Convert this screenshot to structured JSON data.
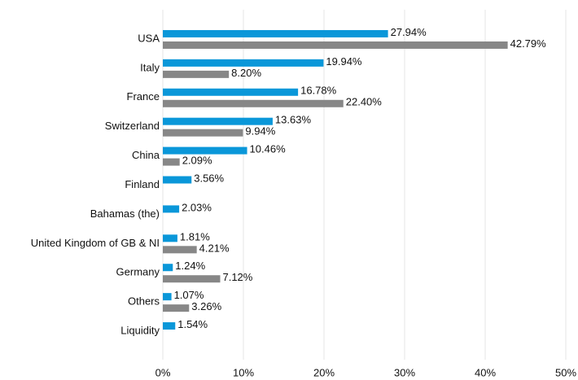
{
  "chart_data": {
    "type": "bar",
    "orientation": "horizontal",
    "categories": [
      "USA",
      "Italy",
      "France",
      "Switzerland",
      "China",
      "Finland",
      "Bahamas (the)",
      "United Kingdom of GB & NI",
      "Germany",
      "Others",
      "Liquidity"
    ],
    "series": [
      {
        "color": "#0a97d9",
        "values": [
          27.94,
          19.94,
          16.78,
          13.63,
          10.46,
          3.56,
          2.03,
          1.81,
          1.24,
          1.07,
          1.54
        ],
        "value_labels": [
          "27.94%",
          "19.94%",
          "16.78%",
          "13.63%",
          "10.46%",
          "3.56%",
          "2.03%",
          "1.81%",
          "1.24%",
          "1.07%",
          "1.54%"
        ]
      },
      {
        "color": "#878787",
        "values": [
          42.79,
          8.2,
          22.4,
          9.94,
          2.09,
          null,
          null,
          4.21,
          7.12,
          3.26,
          null
        ],
        "value_labels": [
          "42.79%",
          "8.20%",
          "22.40%",
          "9.94%",
          "2.09%",
          null,
          null,
          "4.21%",
          "7.12%",
          "3.26%",
          null
        ]
      }
    ],
    "xlim": [
      0,
      50
    ],
    "xticks": [
      {
        "value": 0,
        "label": "0%"
      },
      {
        "value": 10,
        "label": "10%"
      },
      {
        "value": 20,
        "label": "20%"
      },
      {
        "value": 30,
        "label": "30%"
      },
      {
        "value": 40,
        "label": "40%"
      },
      {
        "value": 50,
        "label": "50%"
      }
    ],
    "grid": true
  }
}
